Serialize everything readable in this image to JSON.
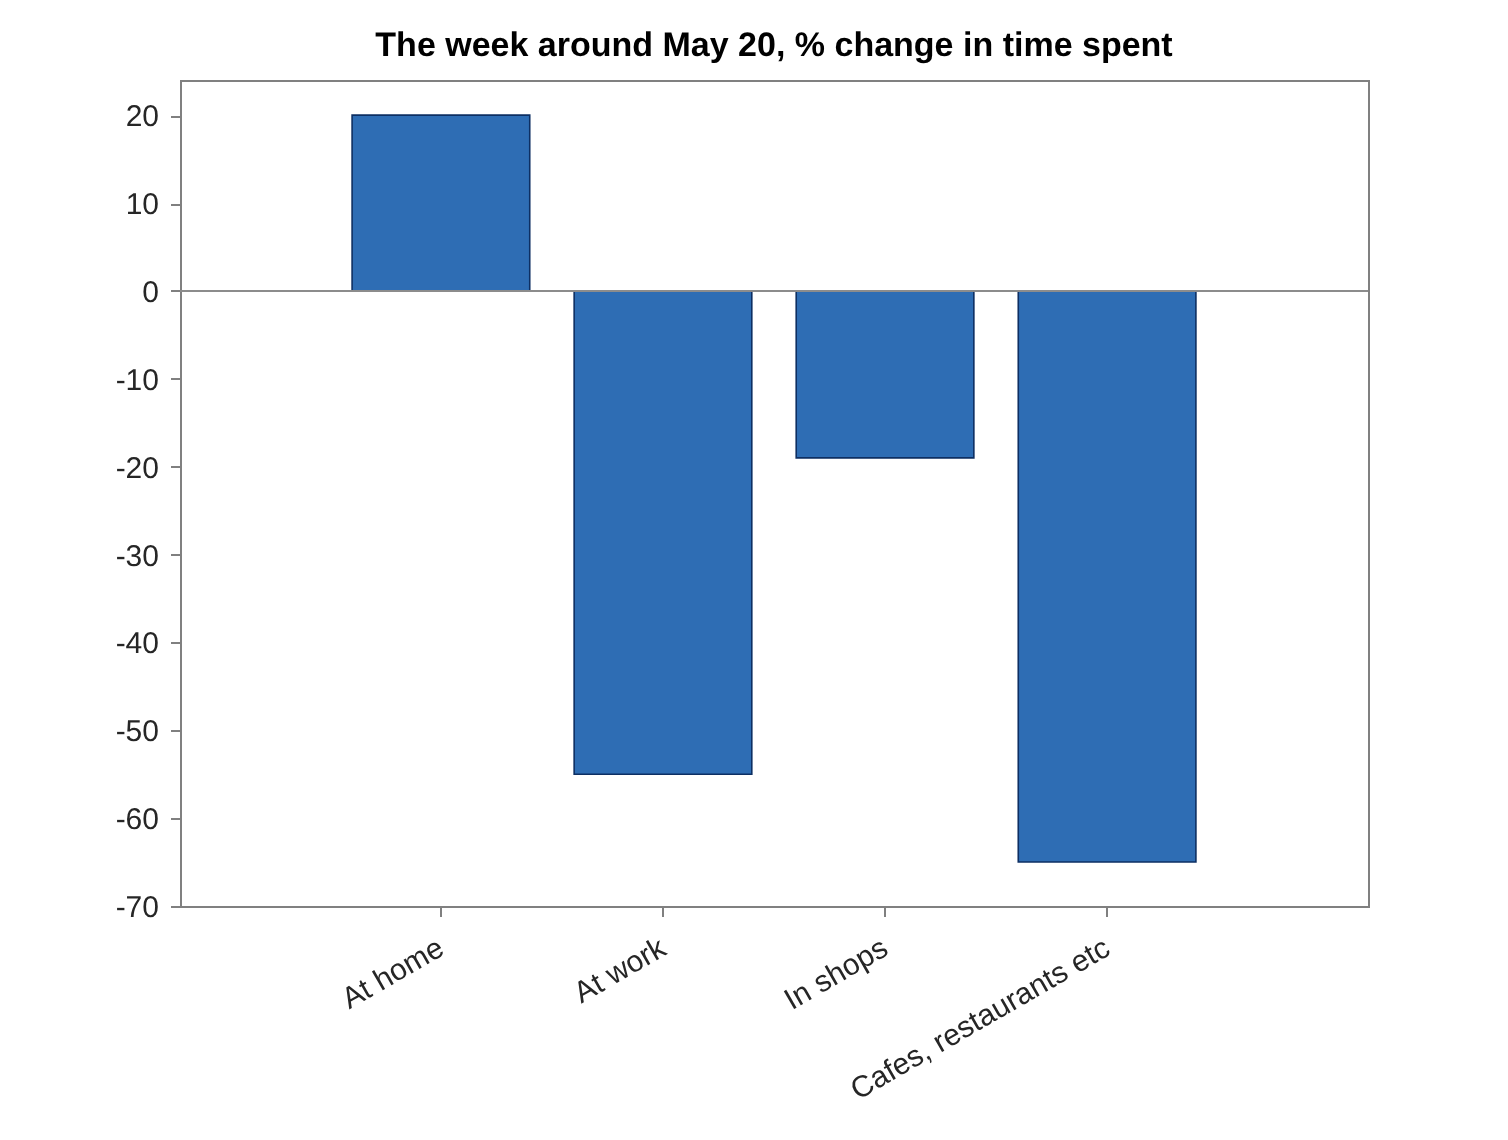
{
  "chart_data": {
    "type": "bar",
    "title": "The week around May 20, % change in time spent",
    "categories": [
      "At home",
      "At work",
      "In shops",
      "Cafes, restaurants etc"
    ],
    "values": [
      20,
      -55,
      -19,
      -65
    ],
    "color": "#2e6db4",
    "ylim": [
      -70,
      24
    ],
    "yticks": [
      -70,
      -60,
      -50,
      -40,
      -30,
      -20,
      -10,
      0,
      10,
      20
    ],
    "ref_lines": [
      {
        "axis": "y",
        "value": 0,
        "color": "#8c8c8c"
      }
    ],
    "grid": false
  }
}
